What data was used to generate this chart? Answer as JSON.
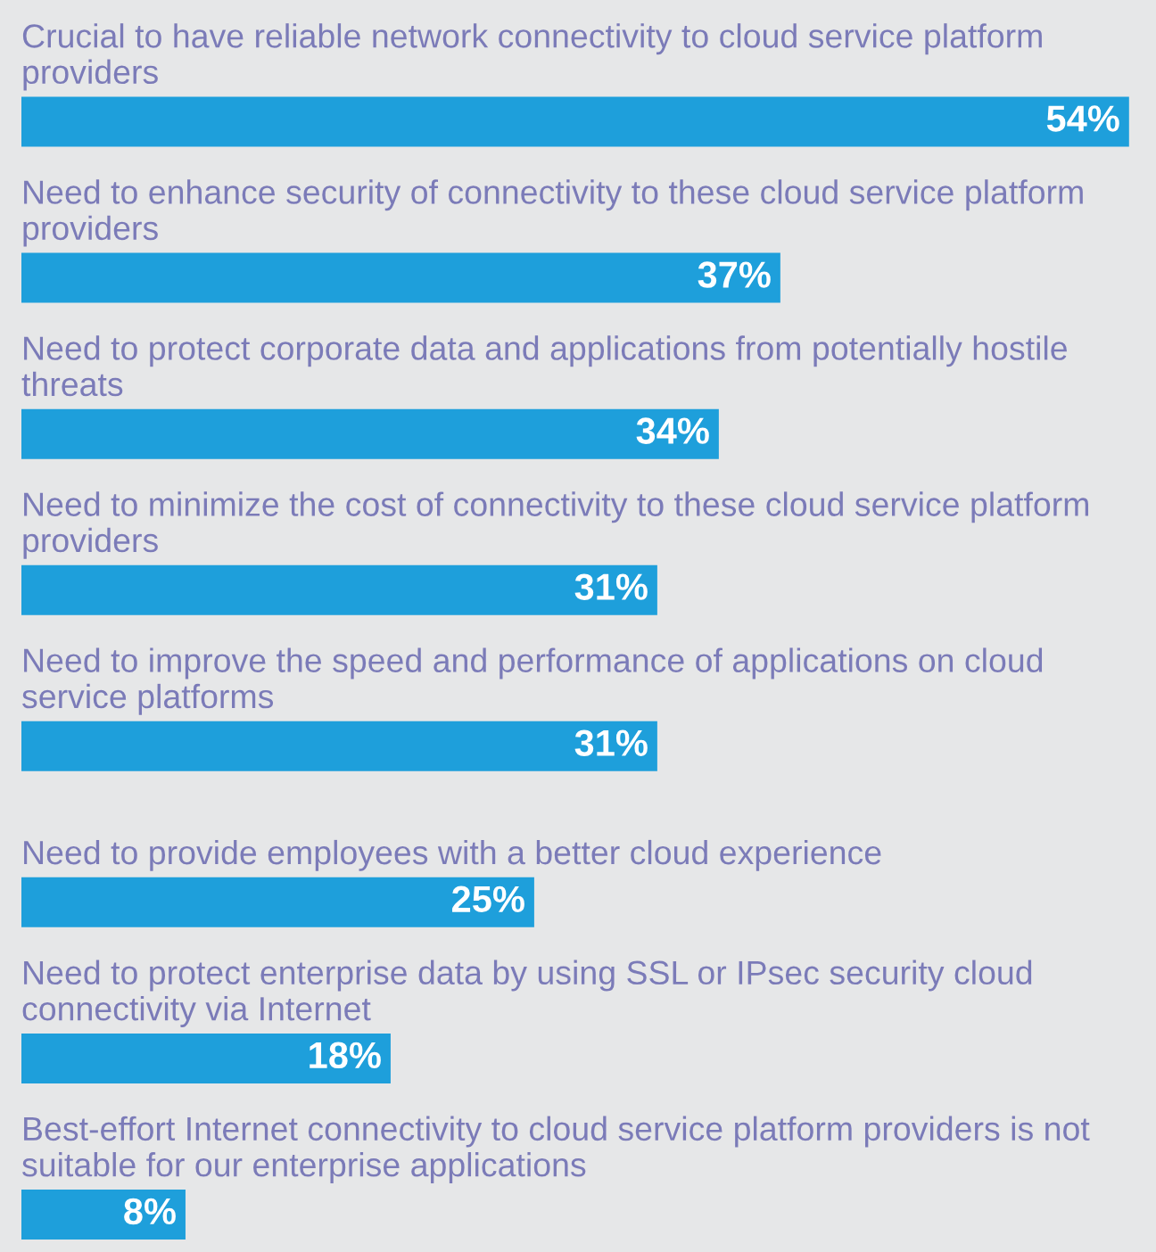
{
  "chart_data": {
    "type": "bar",
    "orientation": "horizontal",
    "categories": [
      "Crucial to have reliable network connectivity to cloud service platform providers",
      "Need to enhance security of connectivity to these cloud service platform providers",
      "Need to protect corporate data and applications from potentially hostile threats",
      "Need to minimize the cost of connectivity to these cloud service platform providers",
      "Need to improve the speed and performance of applications on cloud service platforms",
      "Need to provide employees with a better cloud experience",
      "Need to protect enterprise data by using SSL or IPsec security cloud connectivity via Internet",
      "Best-effort Internet connectivity to cloud service platform providers is not suitable for our enterprise applications"
    ],
    "values": [
      54,
      37,
      34,
      31,
      31,
      25,
      18,
      8
    ],
    "value_labels": [
      "54%",
      "37%",
      "34%",
      "31%",
      "31%",
      "25%",
      "18%",
      "8%"
    ],
    "color": "#1e9fdb"
  }
}
